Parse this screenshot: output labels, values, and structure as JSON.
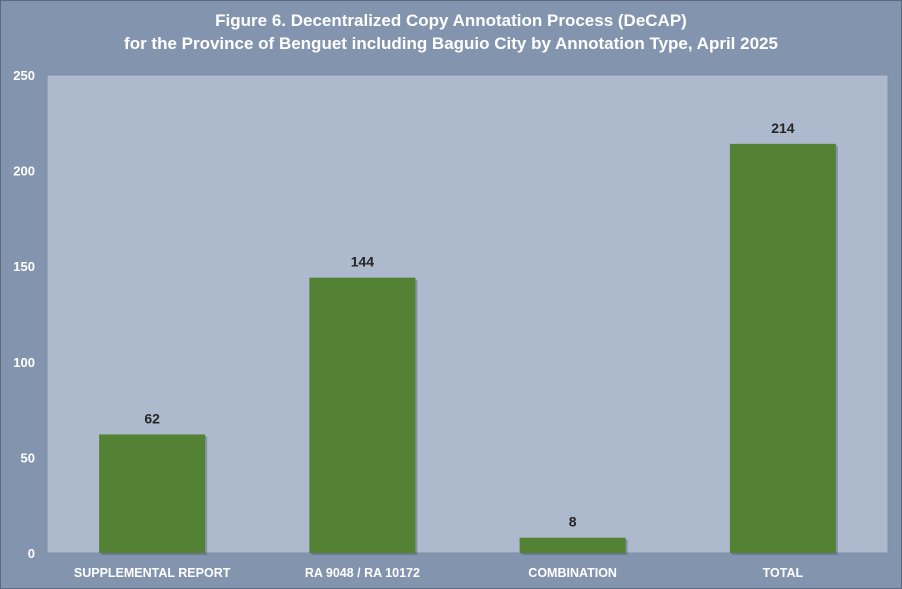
{
  "title_line1": "Figure 6. Decentralized Copy Annotation Process (DeCAP)",
  "title_line2": "for the Province of Benguet including Baguio City by Annotation Type, April 2025",
  "colors": {
    "background": "#8395ae",
    "plot_area": "#adb9cd",
    "bar": "#548235",
    "text": "#ffffff",
    "data_label": "#262626"
  },
  "chart_data": {
    "type": "bar",
    "title": "Figure 6. Decentralized Copy Annotation Process (DeCAP) for the Province of Benguet including Baguio City by Annotation Type, April 2025",
    "categories": [
      "SUPPLEMENTAL REPORT",
      "RA 9048 / RA 10172",
      "COMBINATION",
      "TOTAL"
    ],
    "values": [
      62,
      144,
      8,
      214
    ],
    "data_labels": [
      "62",
      "144",
      "8",
      "214"
    ],
    "ylim": [
      0,
      250
    ],
    "yticks": [
      0,
      50,
      100,
      150,
      200,
      250
    ],
    "xlabel": "",
    "ylabel": "",
    "grid": false,
    "legend": false
  }
}
